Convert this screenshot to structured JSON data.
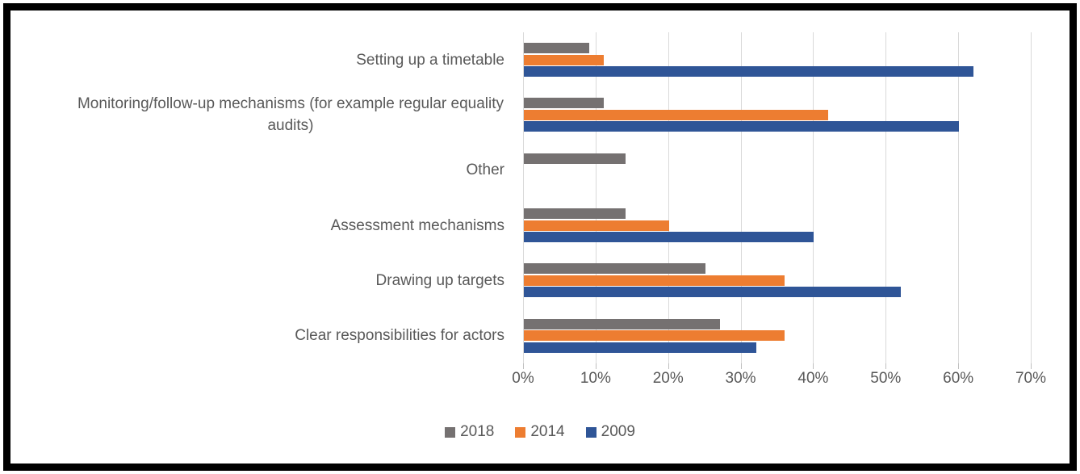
{
  "chart_data": {
    "type": "bar",
    "orientation": "horizontal",
    "title": "",
    "categories": [
      "Setting up a timetable",
      "Monitoring/follow-up mechanisms (for example regular equality audits)",
      "Other",
      "Assessment mechanisms",
      "Drawing up targets",
      "Clear responsibilities for actors"
    ],
    "series": [
      {
        "name": "2018",
        "color": "#757171",
        "values": [
          9,
          11,
          14,
          14,
          25,
          27
        ]
      },
      {
        "name": "2014",
        "color": "#ED7D31",
        "values": [
          11,
          42,
          0,
          20,
          36,
          36
        ]
      },
      {
        "name": "2009",
        "color": "#2F5597",
        "values": [
          62,
          60,
          0,
          40,
          52,
          32
        ]
      }
    ],
    "x_axis": {
      "min": 0,
      "max": 70,
      "tick_step": 10,
      "unit": "%",
      "ticks": [
        "0%",
        "10%",
        "20%",
        "30%",
        "40%",
        "50%",
        "60%",
        "70%"
      ]
    },
    "legend": {
      "position": "bottom",
      "entries": [
        "2018",
        "2014",
        "2009"
      ]
    },
    "grid": true,
    "colors": {
      "gridline": "#D9D9D9",
      "tick": "#BFBFBF",
      "text": "#595959",
      "background": "#FFFFFF",
      "frame_border": "#000000"
    }
  }
}
